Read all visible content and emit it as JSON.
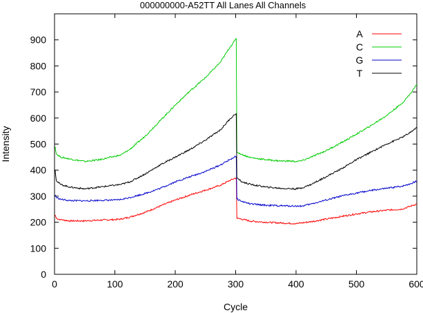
{
  "chart_data": {
    "type": "line",
    "title": "000000000-A52TT All Lanes All Channels",
    "xlabel": "Cycle",
    "ylabel": "Intensity",
    "xlim": [
      0,
      600
    ],
    "ylim": [
      0,
      1000
    ],
    "xticks": [
      0,
      100,
      200,
      300,
      400,
      500,
      600
    ],
    "yticks": [
      0,
      100,
      200,
      300,
      400,
      500,
      600,
      700,
      800,
      900
    ],
    "grid": false,
    "legend_position": "top-right",
    "series": [
      {
        "name": "A",
        "color": "#ff0000",
        "points": [
          [
            1,
            228
          ],
          [
            3,
            215
          ],
          [
            10,
            210
          ],
          [
            25,
            205
          ],
          [
            50,
            205
          ],
          [
            75,
            208
          ],
          [
            100,
            210
          ],
          [
            110,
            212
          ],
          [
            125,
            220
          ],
          [
            150,
            238
          ],
          [
            175,
            262
          ],
          [
            200,
            285
          ],
          [
            225,
            305
          ],
          [
            250,
            323
          ],
          [
            275,
            342
          ],
          [
            290,
            360
          ],
          [
            298,
            368
          ],
          [
            301,
            370
          ],
          [
            302,
            215
          ],
          [
            310,
            212
          ],
          [
            325,
            204
          ],
          [
            350,
            200
          ],
          [
            375,
            197
          ],
          [
            400,
            195
          ],
          [
            405,
            196
          ],
          [
            425,
            202
          ],
          [
            450,
            212
          ],
          [
            475,
            222
          ],
          [
            500,
            232
          ],
          [
            525,
            240
          ],
          [
            550,
            246
          ],
          [
            575,
            250
          ],
          [
            590,
            262
          ],
          [
            600,
            270
          ]
        ]
      },
      {
        "name": "C",
        "color": "#00cc00",
        "points": [
          [
            1,
            490
          ],
          [
            3,
            462
          ],
          [
            10,
            450
          ],
          [
            25,
            443
          ],
          [
            50,
            433
          ],
          [
            75,
            440
          ],
          [
            100,
            453
          ],
          [
            110,
            458
          ],
          [
            125,
            480
          ],
          [
            150,
            530
          ],
          [
            175,
            590
          ],
          [
            200,
            650
          ],
          [
            225,
            705
          ],
          [
            250,
            755
          ],
          [
            275,
            815
          ],
          [
            290,
            870
          ],
          [
            298,
            895
          ],
          [
            301,
            905
          ],
          [
            302,
            470
          ],
          [
            310,
            460
          ],
          [
            325,
            448
          ],
          [
            350,
            440
          ],
          [
            375,
            435
          ],
          [
            390,
            435
          ],
          [
            400,
            433
          ],
          [
            410,
            436
          ],
          [
            425,
            450
          ],
          [
            450,
            475
          ],
          [
            475,
            505
          ],
          [
            500,
            538
          ],
          [
            525,
            572
          ],
          [
            550,
            610
          ],
          [
            575,
            655
          ],
          [
            590,
            695
          ],
          [
            600,
            730
          ]
        ]
      },
      {
        "name": "G",
        "color": "#0000cc",
        "points": [
          [
            1,
            305
          ],
          [
            3,
            295
          ],
          [
            10,
            288
          ],
          [
            25,
            283
          ],
          [
            50,
            282
          ],
          [
            75,
            284
          ],
          [
            100,
            285
          ],
          [
            110,
            287
          ],
          [
            125,
            295
          ],
          [
            150,
            310
          ],
          [
            175,
            330
          ],
          [
            200,
            355
          ],
          [
            225,
            375
          ],
          [
            250,
            395
          ],
          [
            275,
            420
          ],
          [
            290,
            440
          ],
          [
            298,
            450
          ],
          [
            301,
            452
          ],
          [
            302,
            290
          ],
          [
            310,
            280
          ],
          [
            325,
            270
          ],
          [
            350,
            265
          ],
          [
            375,
            263
          ],
          [
            400,
            262
          ],
          [
            410,
            262
          ],
          [
            425,
            270
          ],
          [
            450,
            285
          ],
          [
            475,
            300
          ],
          [
            500,
            312
          ],
          [
            525,
            322
          ],
          [
            550,
            330
          ],
          [
            575,
            338
          ],
          [
            590,
            348
          ],
          [
            600,
            358
          ]
        ]
      },
      {
        "name": "T",
        "color": "#000000",
        "points": [
          [
            1,
            400
          ],
          [
            3,
            360
          ],
          [
            10,
            345
          ],
          [
            25,
            335
          ],
          [
            50,
            328
          ],
          [
            75,
            335
          ],
          [
            100,
            342
          ],
          [
            110,
            345
          ],
          [
            125,
            355
          ],
          [
            150,
            385
          ],
          [
            175,
            420
          ],
          [
            200,
            450
          ],
          [
            225,
            480
          ],
          [
            250,
            515
          ],
          [
            275,
            555
          ],
          [
            290,
            595
          ],
          [
            298,
            612
          ],
          [
            301,
            618
          ],
          [
            302,
            370
          ],
          [
            310,
            355
          ],
          [
            325,
            345
          ],
          [
            350,
            335
          ],
          [
            375,
            330
          ],
          [
            400,
            328
          ],
          [
            410,
            332
          ],
          [
            425,
            345
          ],
          [
            450,
            375
          ],
          [
            475,
            405
          ],
          [
            500,
            440
          ],
          [
            525,
            470
          ],
          [
            550,
            500
          ],
          [
            575,
            525
          ],
          [
            590,
            545
          ],
          [
            600,
            565
          ]
        ]
      }
    ]
  }
}
